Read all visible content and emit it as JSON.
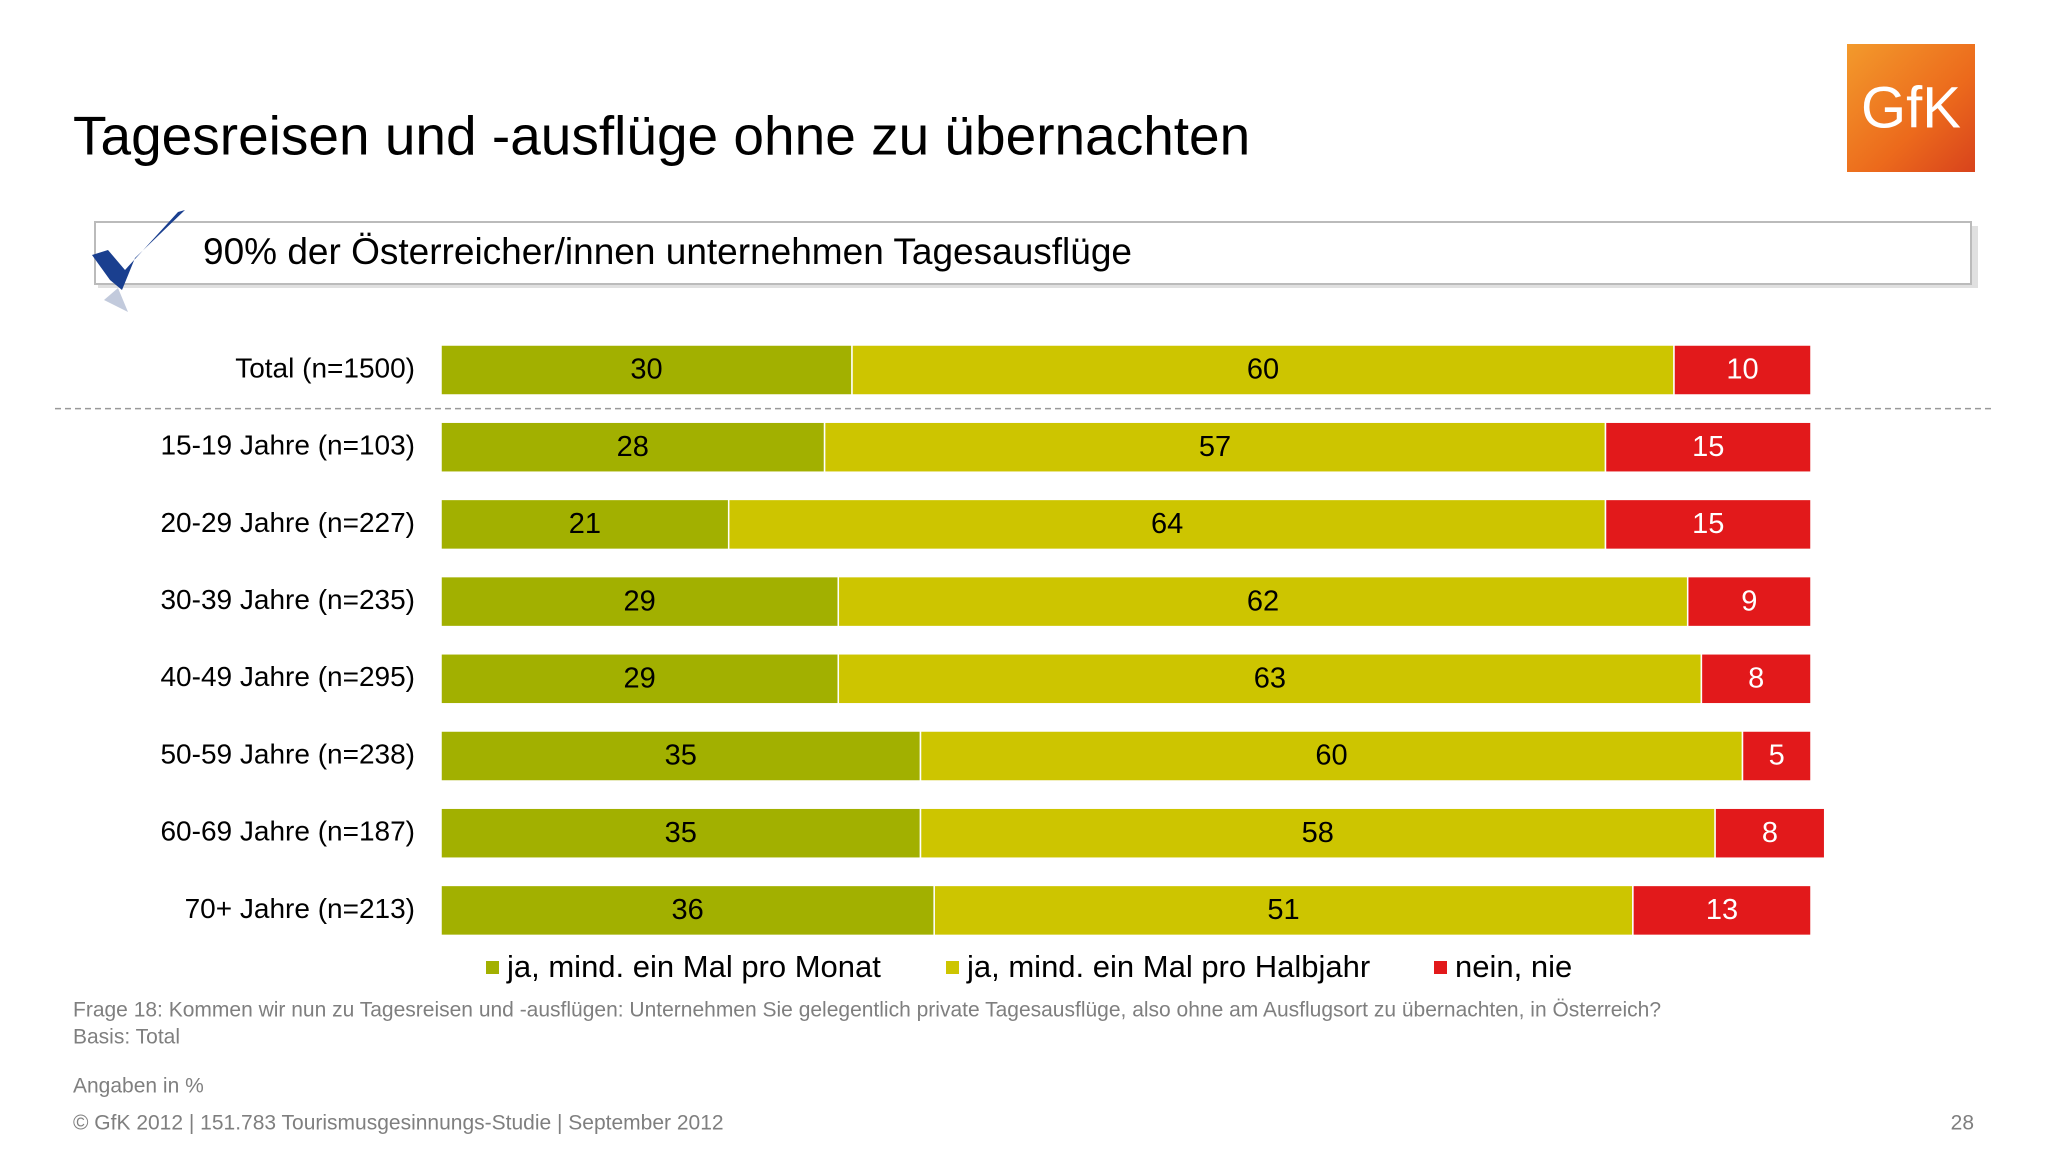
{
  "chart_data": {
    "type": "bar",
    "orientation": "horizontal",
    "stacked": true,
    "title": "Tagesreisen und -ausflüge ohne zu übernachten",
    "subtitle": "90% der Österreicher/innen unternehmen Tagesausflüge",
    "categories": [
      "Total (n=1500)",
      "15-19 Jahre (n=103)",
      "20-29 Jahre (n=227)",
      "30-39 Jahre (n=235)",
      "40-49 Jahre (n=295)",
      "50-59 Jahre (n=238)",
      "60-69 Jahre (n=187)",
      "70+ Jahre (n=213)"
    ],
    "series": [
      {
        "name": "ja, mind. ein Mal pro Monat",
        "color": "#a2b000",
        "values": [
          30,
          28,
          21,
          29,
          29,
          35,
          35,
          36
        ]
      },
      {
        "name": "ja, mind. ein Mal pro Halbjahr",
        "color": "#cdc500",
        "values": [
          60,
          57,
          64,
          62,
          63,
          60,
          58,
          51
        ]
      },
      {
        "name": "nein, nie",
        "color": "#e2191b",
        "values": [
          10,
          15,
          15,
          9,
          8,
          5,
          8,
          13
        ]
      }
    ],
    "xlim": [
      0,
      100
    ],
    "legend": "bottom",
    "footnotes": [
      "Frage 18: Kommen wir nun zu Tagesreisen und -ausflügen: Unternehmen Sie gelegentlich private Tagesausflüge, also ohne am Ausflugsort zu übernachten, in Österreich?",
      "Basis: Total"
    ],
    "unit_note": "Angaben in %",
    "source": "© GfK 2012 | 151.783 Tourismusgesinnungs-Studie | September 2012"
  },
  "logo": "GfK",
  "page_number": 28
}
